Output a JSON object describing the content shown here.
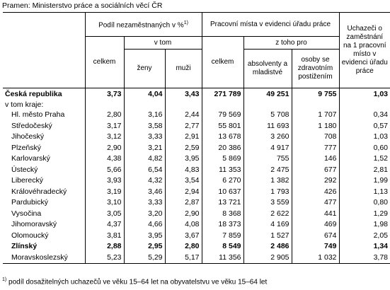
{
  "source": "Pramen: Ministerstvo práce a sociálních věcí ČR",
  "headers": {
    "unemployed_share": "Podíl nezaměstnaných v %",
    "unemployed_share_sup": "1)",
    "of_which": "v tom",
    "total": "celkem",
    "women": "ženy",
    "men": "muži",
    "vacancies": "Pracovní místa v evidenci úřadu práce",
    "vac_total": "celkem",
    "of_those_for": "z toho pro",
    "graduates": "absolventy a mladistvé",
    "disabled": "osoby se zdravotním postižením",
    "applicants_per_vacancy": "Uchazeči o zaměstnání na 1 pracovní místo v evidenci úřadu práce"
  },
  "country_row": {
    "name": "Česká republika",
    "values": [
      "3,73",
      "4,04",
      "3,43",
      "271 789",
      "49 251",
      "9 755",
      "1,03"
    ]
  },
  "regions_label": "v tom kraje:",
  "rows": [
    {
      "name": "Hl. město Praha",
      "values": [
        "2,80",
        "3,16",
        "2,44",
        "79 569",
        "5 708",
        "1 707",
        "0,34"
      ]
    },
    {
      "name": "Středočeský",
      "values": [
        "3,17",
        "3,58",
        "2,77",
        "55 801",
        "11 693",
        "1 180",
        "0,57"
      ]
    },
    {
      "name": "Jihočeský",
      "values": [
        "3,12",
        "3,33",
        "2,91",
        "13 678",
        "3 260",
        "708",
        "1,03"
      ]
    },
    {
      "name": "Plzeňský",
      "values": [
        "2,90",
        "3,21",
        "2,59",
        "20 386",
        "4 917",
        "777",
        "0,60"
      ]
    },
    {
      "name": "Karlovarský",
      "values": [
        "4,38",
        "4,82",
        "3,95",
        "5 869",
        "755",
        "146",
        "1,52"
      ]
    },
    {
      "name": "Ústecký",
      "values": [
        "5,66",
        "6,54",
        "4,83",
        "11 353",
        "2 475",
        "677",
        "2,81"
      ]
    },
    {
      "name": "Liberecký",
      "values": [
        "3,93",
        "4,32",
        "3,54",
        "6 270",
        "1 382",
        "292",
        "1,99"
      ]
    },
    {
      "name": "Královéhradecký",
      "values": [
        "3,19",
        "3,46",
        "2,94",
        "10 637",
        "1 793",
        "426",
        "1,13"
      ]
    },
    {
      "name": "Pardubický",
      "values": [
        "3,10",
        "3,33",
        "2,87",
        "13 721",
        "3 559",
        "477",
        "0,80"
      ]
    },
    {
      "name": "Vysočina",
      "values": [
        "3,05",
        "3,20",
        "2,90",
        "8 368",
        "2 622",
        "441",
        "1,29"
      ]
    },
    {
      "name": "Jihomoravský",
      "values": [
        "4,37",
        "4,66",
        "4,08",
        "18 373",
        "4 169",
        "469",
        "1,98"
      ]
    },
    {
      "name": "Olomoucký",
      "values": [
        "3,81",
        "3,95",
        "3,67",
        "7 859",
        "1 527",
        "674",
        "2,05"
      ]
    },
    {
      "name": "Zlínský",
      "values": [
        "2,88",
        "2,95",
        "2,80",
        "8 549",
        "2 486",
        "749",
        "1,34"
      ],
      "bold": true
    },
    {
      "name": "Moravskoslezský",
      "values": [
        "5,23",
        "5,29",
        "5,17",
        "11 356",
        "2 905",
        "1 032",
        "3,78"
      ]
    }
  ],
  "footnote_mark": "1)",
  "footnote": "podíl dosažitelných uchazečů ve věku 15–64 let na obyvatelstvu ve věku 15–64 let"
}
